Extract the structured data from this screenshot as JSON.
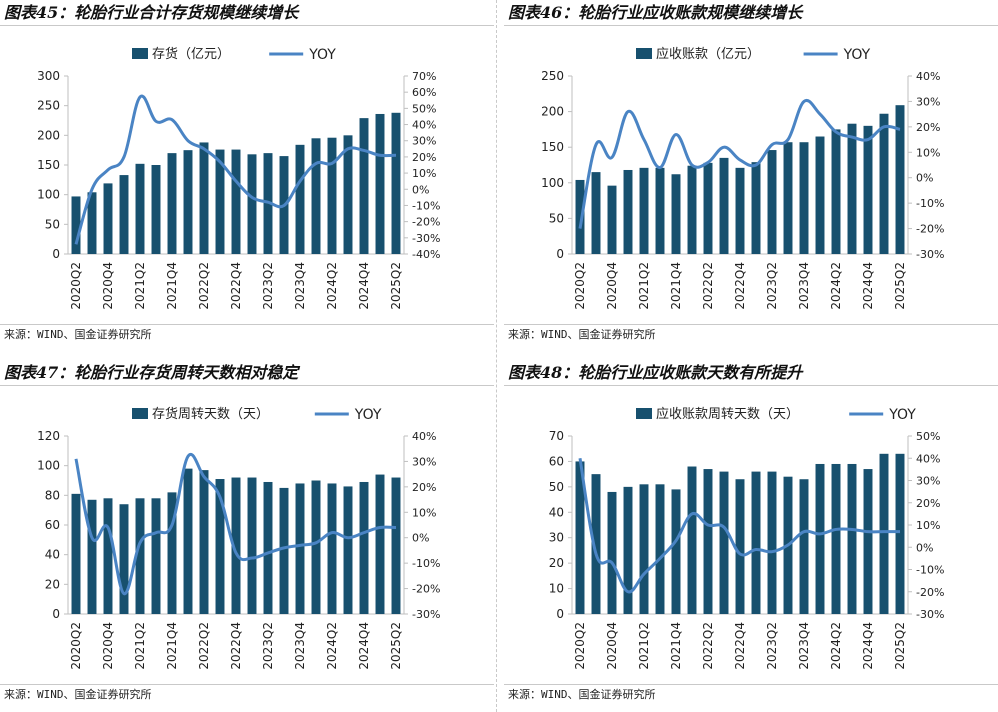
{
  "colors": {
    "bar": "#17506e",
    "line": "#4a84c4",
    "axis": "#bfbfbf"
  },
  "panels": [
    {
      "title": "图表45：轮胎行业合计存货规模继续增长",
      "source": "来源：WIND、国金证券研究所",
      "chart_data": {
        "type": "bar",
        "bar_name": "存货（亿元）",
        "line_name": "YOY",
        "categories": [
          "2020Q2",
          "2020Q3",
          "2020Q4",
          "2021Q1",
          "2021Q2",
          "2021Q3",
          "2021Q4",
          "2022Q1",
          "2022Q2",
          "2022Q3",
          "2022Q4",
          "2023Q1",
          "2023Q2",
          "2023Q3",
          "2023Q4",
          "2024Q1",
          "2024Q2",
          "2024Q3",
          "2024Q4",
          "2025Q1",
          "2025Q2"
        ],
        "xtick_labels": [
          "2020Q2",
          "",
          "2020Q4",
          "",
          "2021Q2",
          "",
          "2021Q4",
          "",
          "2022Q2",
          "",
          "2022Q4",
          "",
          "2023Q2",
          "",
          "2023Q4",
          "",
          "2024Q2",
          "",
          "2024Q4",
          "",
          "2025Q2"
        ],
        "bar_values": [
          97,
          104,
          119,
          133,
          152,
          150,
          170,
          175,
          188,
          176,
          176,
          168,
          170,
          165,
          184,
          195,
          196,
          200,
          229,
          236,
          238
        ],
        "line_values": [
          -34,
          0,
          12,
          20,
          57,
          42,
          43,
          30,
          25,
          17,
          5,
          -5,
          -8,
          -10,
          5,
          16,
          16,
          25,
          24,
          21,
          21
        ],
        "y_left": {
          "min": 0,
          "max": 300,
          "ticks": [
            0,
            50,
            100,
            150,
            200,
            250,
            300
          ]
        },
        "y_right": {
          "min": -40,
          "max": 70,
          "ticks": [
            -40,
            -30,
            -20,
            -10,
            0,
            10,
            20,
            30,
            40,
            50,
            60,
            70
          ]
        }
      }
    },
    {
      "title": "图表46：轮胎行业应收账款规模继续增长",
      "source": "来源：WIND、国金证券研究所",
      "chart_data": {
        "type": "bar",
        "bar_name": "应收账款（亿元）",
        "line_name": "YOY",
        "categories": [
          "2020Q2",
          "2020Q3",
          "2020Q4",
          "2021Q1",
          "2021Q2",
          "2021Q3",
          "2021Q4",
          "2022Q1",
          "2022Q2",
          "2022Q3",
          "2022Q4",
          "2023Q1",
          "2023Q2",
          "2023Q3",
          "2023Q4",
          "2024Q1",
          "2024Q2",
          "2024Q3",
          "2024Q4",
          "2025Q1",
          "2025Q2"
        ],
        "xtick_labels": [
          "2020Q2",
          "",
          "2020Q4",
          "",
          "2021Q2",
          "",
          "2021Q4",
          "",
          "2022Q2",
          "",
          "2022Q4",
          "",
          "2023Q2",
          "",
          "2023Q4",
          "",
          "2024Q2",
          "",
          "2024Q4",
          "",
          "2025Q2"
        ],
        "bar_values": [
          104,
          115,
          96,
          118,
          121,
          121,
          112,
          124,
          128,
          135,
          121,
          129,
          146,
          157,
          157,
          165,
          175,
          183,
          180,
          197,
          209
        ],
        "line_values": [
          -20,
          13,
          8,
          26,
          15,
          4,
          17,
          5,
          6,
          12,
          7,
          5,
          13,
          15,
          30,
          25,
          18,
          16,
          15,
          20,
          19
        ],
        "y_left": {
          "min": 0,
          "max": 250,
          "ticks": [
            0,
            50,
            100,
            150,
            200,
            250
          ]
        },
        "y_right": {
          "min": -30,
          "max": 40,
          "ticks": [
            -30,
            -20,
            -10,
            0,
            10,
            20,
            30,
            40
          ]
        }
      }
    },
    {
      "title": "图表47：轮胎行业存货周转天数相对稳定",
      "source": "来源：WIND、国金证券研究所",
      "chart_data": {
        "type": "bar",
        "bar_name": "存货周转天数（天）",
        "line_name": "YOY",
        "categories": [
          "2020Q2",
          "2020Q3",
          "2020Q4",
          "2021Q1",
          "2021Q2",
          "2021Q3",
          "2021Q4",
          "2022Q1",
          "2022Q2",
          "2022Q3",
          "2022Q4",
          "2023Q1",
          "2023Q2",
          "2023Q3",
          "2023Q4",
          "2024Q1",
          "2024Q2",
          "2024Q3",
          "2024Q4",
          "2025Q1",
          "2025Q2"
        ],
        "xtick_labels": [
          "2020Q2",
          "",
          "2020Q4",
          "",
          "2021Q2",
          "",
          "2021Q4",
          "",
          "2022Q2",
          "",
          "2022Q4",
          "",
          "2023Q2",
          "",
          "2023Q4",
          "",
          "2024Q2",
          "",
          "2024Q4",
          "",
          "2025Q2"
        ],
        "bar_values": [
          81,
          77,
          78,
          74,
          78,
          78,
          82,
          98,
          97,
          91,
          92,
          92,
          89,
          85,
          88,
          90,
          88,
          86,
          89,
          94,
          92
        ],
        "line_values": [
          31,
          0,
          4,
          -22,
          -2,
          2,
          5,
          32,
          24,
          16,
          -6,
          -8,
          -6,
          -4,
          -3,
          -2,
          2,
          0,
          2,
          4,
          4
        ],
        "y_left": {
          "min": 0,
          "max": 120,
          "ticks": [
            0,
            20,
            40,
            60,
            80,
            100,
            120
          ]
        },
        "y_right": {
          "min": -30,
          "max": 40,
          "ticks": [
            -30,
            -20,
            -10,
            0,
            10,
            20,
            30,
            40
          ]
        }
      }
    },
    {
      "title": "图表48：轮胎行业应收账款天数有所提升",
      "source": "来源：WIND、国金证券研究所",
      "chart_data": {
        "type": "bar",
        "bar_name": "应收账款周转天数（天）",
        "line_name": "YOY",
        "categories": [
          "2020Q2",
          "2020Q3",
          "2020Q4",
          "2021Q1",
          "2021Q2",
          "2021Q3",
          "2021Q4",
          "2022Q1",
          "2022Q2",
          "2022Q3",
          "2022Q4",
          "2023Q1",
          "2023Q2",
          "2023Q3",
          "2023Q4",
          "2024Q1",
          "2024Q2",
          "2024Q3",
          "2024Q4",
          "2025Q1",
          "2025Q2"
        ],
        "xtick_labels": [
          "2020Q2",
          "",
          "2020Q4",
          "",
          "2021Q2",
          "",
          "2021Q4",
          "",
          "2022Q2",
          "",
          "2022Q4",
          "",
          "2023Q2",
          "",
          "2023Q4",
          "",
          "2024Q2",
          "",
          "2024Q4",
          "",
          "2025Q2"
        ],
        "bar_values": [
          60,
          55,
          48,
          50,
          51,
          51,
          49,
          58,
          57,
          56,
          53,
          56,
          56,
          54,
          53,
          59,
          59,
          59,
          57,
          63,
          63
        ],
        "line_values": [
          40,
          -3,
          -7,
          -20,
          -12,
          -5,
          3,
          15,
          10,
          9,
          -3,
          -1,
          -2,
          1,
          7,
          6,
          8,
          8,
          7,
          7,
          7
        ],
        "y_left": {
          "min": 0,
          "max": 70,
          "ticks": [
            0,
            10,
            20,
            30,
            40,
            50,
            60,
            70
          ]
        },
        "y_right": {
          "min": -30,
          "max": 50,
          "ticks": [
            -30,
            -20,
            -10,
            0,
            10,
            20,
            30,
            40,
            50
          ]
        }
      }
    }
  ]
}
